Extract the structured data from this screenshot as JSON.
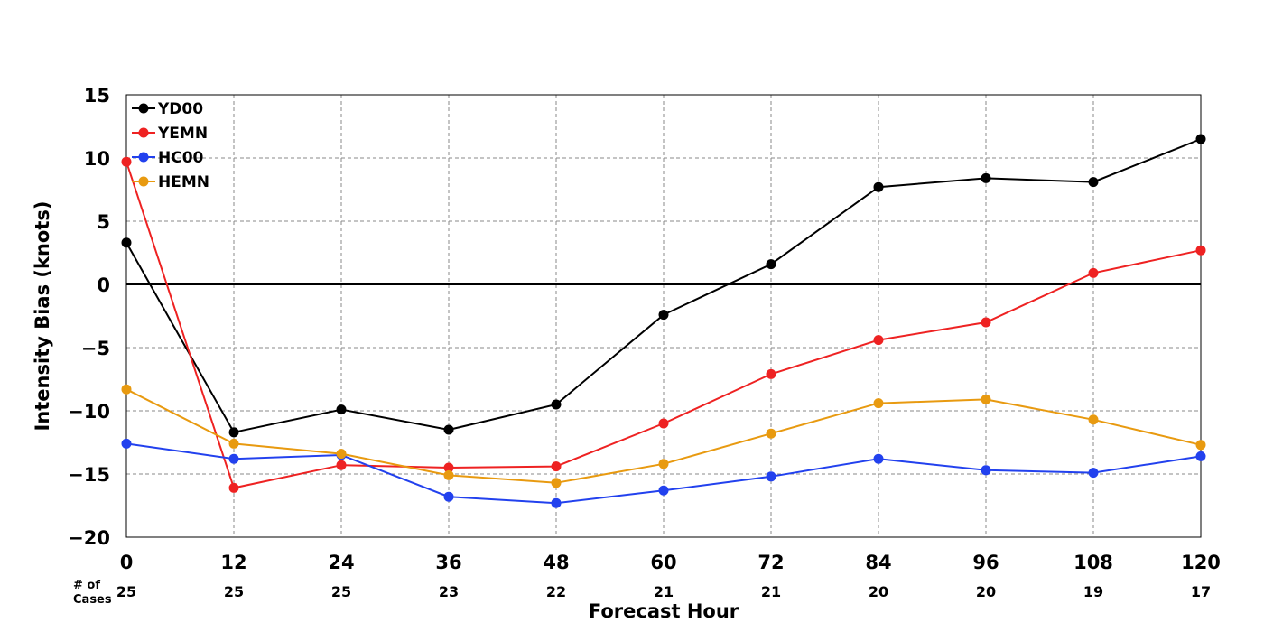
{
  "chart_data": {
    "type": "line",
    "xlabel": "Forecast Hour",
    "ylabel": "Intensity Bias (knots)",
    "x": [
      0,
      12,
      24,
      36,
      48,
      60,
      72,
      84,
      96,
      108,
      120
    ],
    "xlim": [
      0,
      120
    ],
    "ylim": [
      -20,
      15
    ],
    "yticks": [
      15,
      10,
      5,
      0,
      -5,
      -10,
      -15,
      -20
    ],
    "ytick_labels": [
      "15",
      "10",
      "5",
      "0",
      "−5",
      "−10",
      "−15",
      "−20"
    ],
    "grid": true,
    "zero_line": true,
    "legend_position": "top-left",
    "cases_label": [
      "# of",
      "Cases"
    ],
    "cases": [
      25,
      25,
      25,
      23,
      22,
      21,
      21,
      20,
      20,
      19,
      17
    ],
    "series": [
      {
        "name": "YD00",
        "color": "#000000",
        "values": [
          3.3,
          -11.7,
          -9.9,
          -11.5,
          -9.5,
          -2.4,
          1.6,
          7.7,
          8.4,
          8.1,
          11.5
        ]
      },
      {
        "name": "YEMN",
        "color": "#ee2222",
        "values": [
          9.7,
          -16.1,
          -14.3,
          -14.5,
          -14.4,
          -11.0,
          -7.1,
          -4.4,
          -3.0,
          0.9,
          2.7
        ]
      },
      {
        "name": "HC00",
        "color": "#2241ee",
        "values": [
          -12.6,
          -13.8,
          -13.5,
          -16.8,
          -17.3,
          -16.3,
          -15.2,
          -13.8,
          -14.7,
          -14.9,
          -13.6
        ]
      },
      {
        "name": "HEMN",
        "color": "#e89a10",
        "values": [
          -8.3,
          -12.6,
          -13.4,
          -15.1,
          -15.7,
          -14.2,
          -11.8,
          -9.4,
          -9.1,
          -10.7,
          -12.7
        ]
      }
    ]
  }
}
